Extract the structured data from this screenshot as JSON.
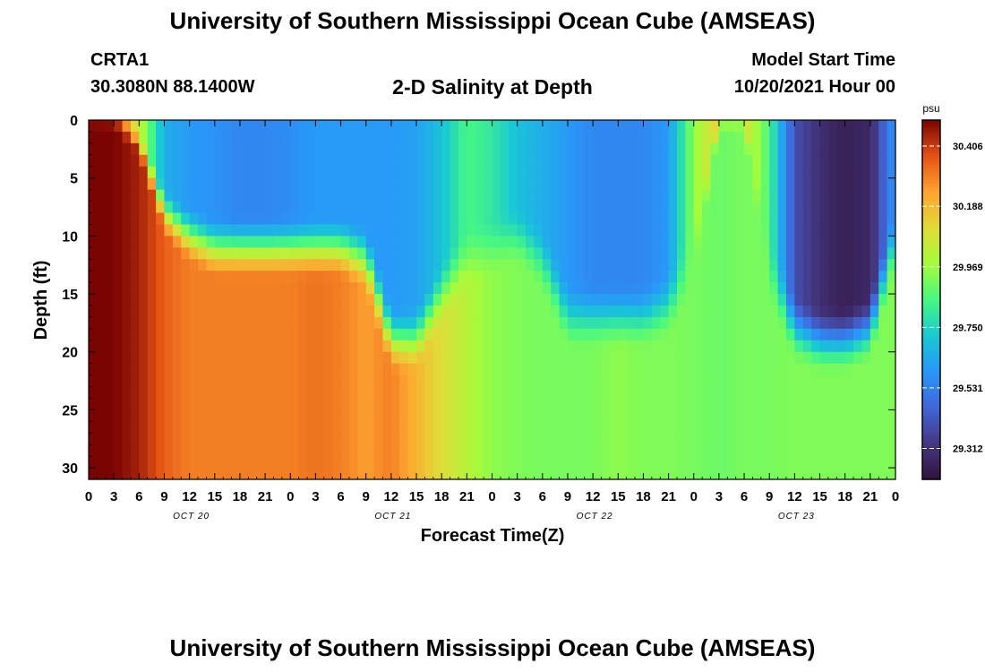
{
  "header": {
    "title": "University of Southern Mississippi Ocean Cube (AMSEAS)",
    "station": "CRTA1",
    "coords": "30.3080N  88.1400W",
    "plot_title": "2-D Salinity at Depth",
    "start_label": "Model Start Time",
    "start_value": "10/20/2021 Hour 00"
  },
  "footer": {
    "title": "University of Southern Mississippi Ocean Cube (AMSEAS)"
  },
  "chart_data": {
    "type": "heatmap",
    "title": "2-D Salinity at Depth",
    "xlabel": "Forecast Time(Z)",
    "ylabel": "Depth (ft)",
    "x_ticks": [
      "0",
      "3",
      "6",
      "9",
      "12",
      "15",
      "18",
      "21",
      "0",
      "3",
      "6",
      "9",
      "12",
      "15",
      "18",
      "21",
      "0",
      "3",
      "6",
      "9",
      "12",
      "15",
      "18",
      "21",
      "0",
      "3",
      "6",
      "9",
      "12",
      "15",
      "18",
      "21",
      "0"
    ],
    "x_range_hours": [
      0,
      96
    ],
    "date_labels": [
      {
        "label": "OCT 20",
        "hour": 12
      },
      {
        "label": "OCT 21",
        "hour": 36
      },
      {
        "label": "OCT 22",
        "hour": 60
      },
      {
        "label": "OCT 23",
        "hour": 84
      }
    ],
    "y_ticks": [
      0,
      5,
      10,
      15,
      20,
      25,
      30
    ],
    "y_range": [
      0,
      31
    ],
    "y_inverted": true,
    "colorbar": {
      "unit": "psu",
      "ticks": [
        "30.406",
        "30.188",
        "29.969",
        "29.750",
        "29.531",
        "29.312"
      ],
      "min": 29.2,
      "max": 30.5
    },
    "time_hours": [
      0,
      3,
      6,
      9,
      12,
      15,
      18,
      21,
      24,
      27,
      30,
      33,
      36,
      39,
      42,
      45,
      48,
      51,
      54,
      57,
      60,
      63,
      66,
      69,
      72,
      75,
      78,
      81,
      84,
      87,
      90,
      93,
      96
    ],
    "mixed_layer_depth_ft": [
      0,
      0,
      2,
      8,
      10,
      11,
      11,
      11,
      11,
      11,
      11,
      12,
      19,
      19,
      15,
      12,
      11,
      10,
      12,
      17,
      17,
      17,
      17,
      16,
      12,
      0,
      0,
      13,
      18,
      19,
      19,
      18,
      10
    ],
    "surface_salinity_psu": [
      30.45,
      30.4,
      30.05,
      29.65,
      29.6,
      29.58,
      29.55,
      29.55,
      29.57,
      29.6,
      29.6,
      29.6,
      29.6,
      29.62,
      29.7,
      29.85,
      29.8,
      29.7,
      29.65,
      29.6,
      29.55,
      29.55,
      29.55,
      29.6,
      29.95,
      30.15,
      30.1,
      29.85,
      29.4,
      29.3,
      29.25,
      29.28,
      29.6
    ],
    "bottom_salinity_psu": [
      30.5,
      30.5,
      30.45,
      30.35,
      30.3,
      30.3,
      30.3,
      30.3,
      30.3,
      30.32,
      30.3,
      30.25,
      30.3,
      30.2,
      30.1,
      30.02,
      29.95,
      29.93,
      29.92,
      29.92,
      29.92,
      29.95,
      29.93,
      29.93,
      29.92,
      29.9,
      29.92,
      29.92,
      29.93,
      29.93,
      29.93,
      29.93,
      29.93
    ]
  }
}
